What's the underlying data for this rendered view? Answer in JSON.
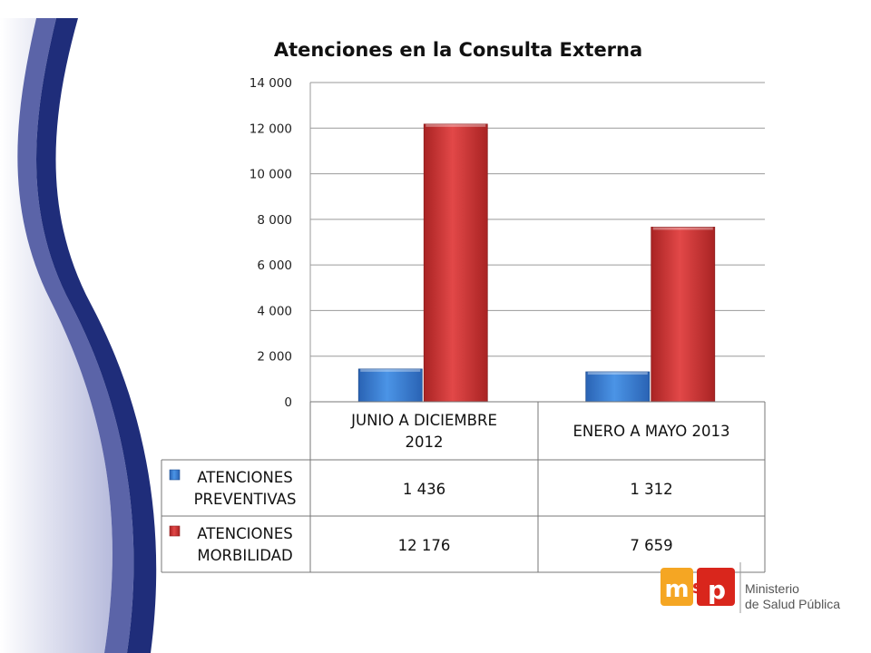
{
  "chart_data": {
    "type": "bar",
    "title": "Atenciones en la Consulta Externa",
    "categories": [
      "JUNIO A DICIEMBRE 2012",
      "ENERO A MAYO 2013"
    ],
    "category_lines": [
      [
        "JUNIO A DICIEMBRE",
        "2012"
      ],
      [
        "ENERO A MAYO 2013"
      ]
    ],
    "series": [
      {
        "name": "ATENCIONES PREVENTIVAS",
        "name_lines": [
          "ATENCIONES",
          "PREVENTIVAS"
        ],
        "values": [
          1436,
          1312
        ],
        "labels": [
          "1 436",
          "1 312"
        ],
        "color": "#3a7fd5"
      },
      {
        "name": "ATENCIONES MORBILIDAD",
        "name_lines": [
          "ATENCIONES",
          "MORBILIDAD"
        ],
        "values": [
          12176,
          7659
        ],
        "labels": [
          "12 176",
          "7 659"
        ],
        "color": "#d23a3a"
      }
    ],
    "y_ticks": [
      0,
      2000,
      4000,
      6000,
      8000,
      10000,
      12000,
      14000
    ],
    "y_tick_labels": [
      "0",
      "2 000",
      "4 000",
      "6 000",
      "8 000",
      "10 000",
      "12 000",
      "14 000"
    ],
    "ylim": [
      0,
      14000
    ],
    "grid": true,
    "legend": "data-table"
  },
  "logo": {
    "mark": "msp",
    "org_line1": "Ministerio",
    "org_line2": "de Salud Pública"
  },
  "colors": {
    "wave_dark": "#1f2d7a",
    "wave_mid": "#5b64a8",
    "wave_light": "#b7bbdc",
    "logo_orange": "#f5a623",
    "logo_red": "#d9261c"
  }
}
